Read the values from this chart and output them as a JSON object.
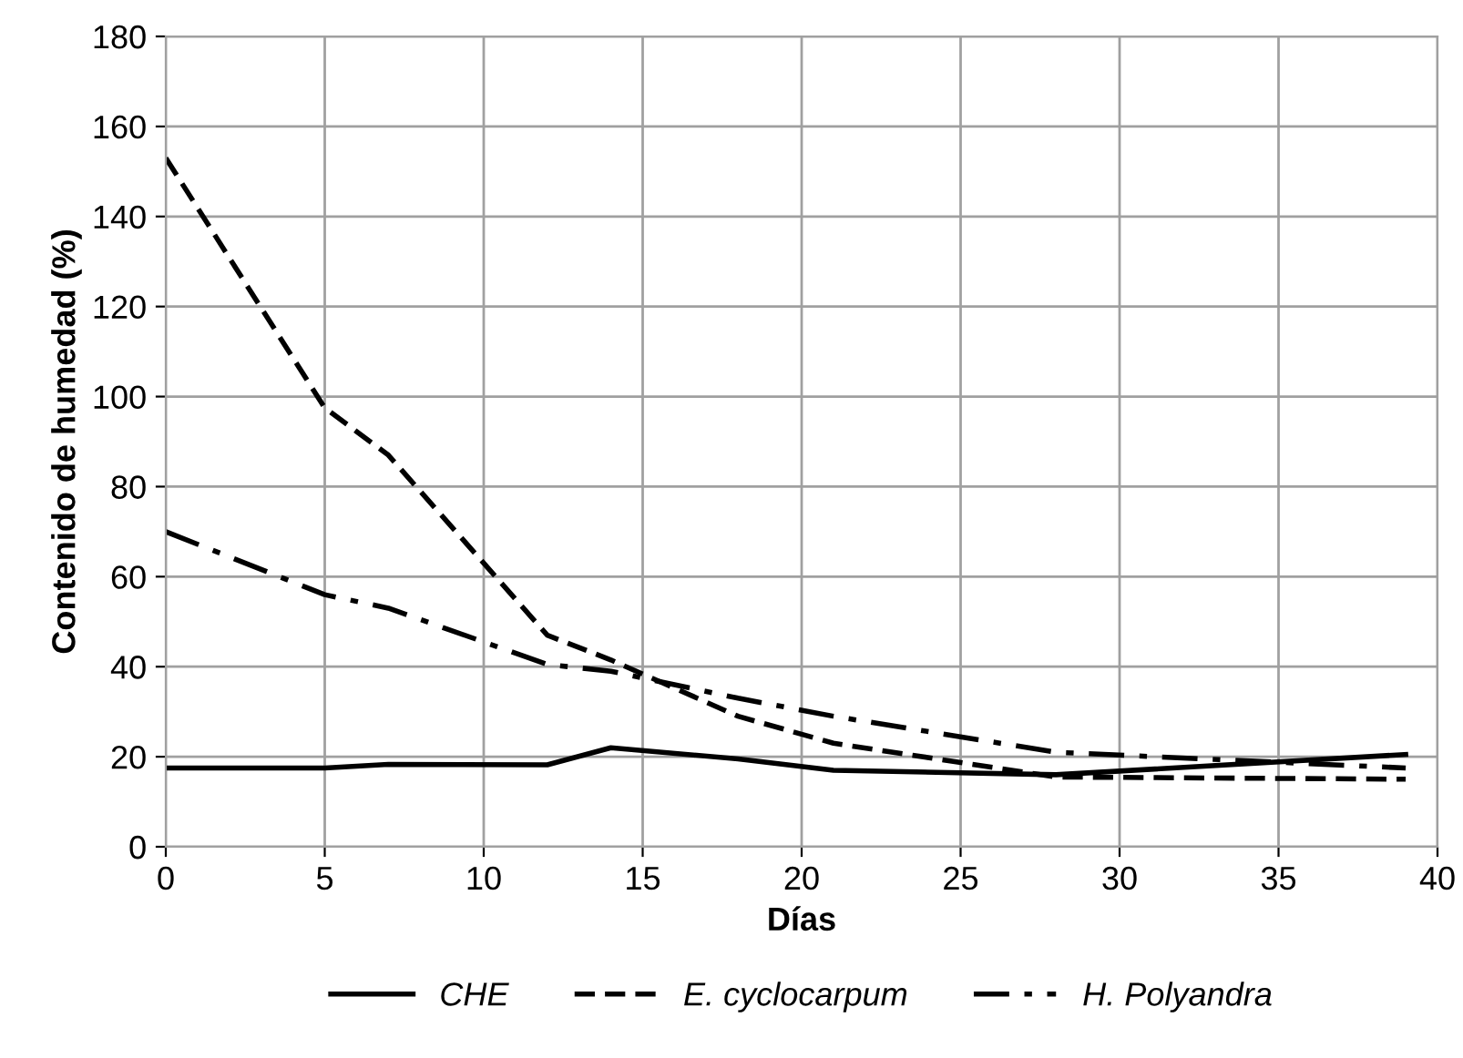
{
  "chart_data": {
    "type": "line",
    "xlabel": "Días",
    "ylabel": "Contenido de humedad (%)",
    "xlim": [
      0,
      40
    ],
    "xticks": [
      0,
      5,
      10,
      15,
      20,
      25,
      30,
      35,
      40
    ],
    "ylim": [
      0,
      180
    ],
    "yticks": [
      0,
      20,
      40,
      60,
      80,
      100,
      120,
      140,
      160,
      180
    ],
    "grid": true,
    "legend": "bottom",
    "marker": "none",
    "series": [
      {
        "name": "CHE",
        "color": "#000000",
        "line_style": "solid",
        "x": [
          0,
          5,
          7,
          12,
          14,
          18,
          21,
          28,
          39
        ],
        "values": [
          17.5,
          17.5,
          18.3,
          18.2,
          22,
          19.5,
          17,
          16,
          20.5
        ]
      },
      {
        "name": "E. cyclocarpum",
        "color": "#000000",
        "line_style": "dashed",
        "x": [
          0,
          5,
          7,
          12,
          14,
          18,
          21,
          28,
          39
        ],
        "values": [
          153,
          97.5,
          87,
          47,
          41.5,
          29,
          23,
          15.5,
          15
        ]
      },
      {
        "name": "H. Polyandra",
        "color": "#000000",
        "line_style": "dashdot",
        "x": [
          0,
          5,
          7,
          12,
          14,
          18,
          21,
          28,
          39
        ],
        "values": [
          70,
          56,
          53,
          40.5,
          39,
          33,
          29,
          21,
          17.5
        ]
      }
    ]
  }
}
